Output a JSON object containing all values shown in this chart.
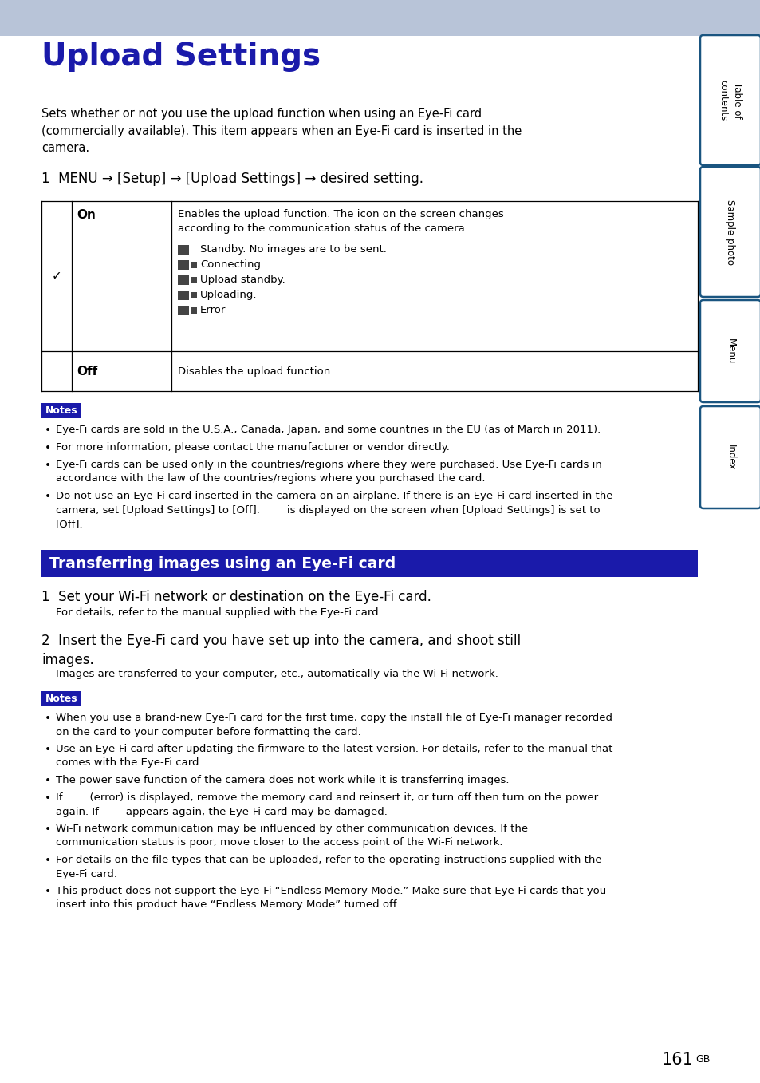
{
  "page_bg": "#ffffff",
  "header_bg": "#b8c4d8",
  "title_text": "Upload Settings",
  "title_color": "#1a1aaa",
  "title_fontsize": 26,
  "body_text_color": "#000000",
  "step1_text": "1  MENU → [Setup] → [Upload Settings] → desired setting.",
  "notes_bg": "#1a1aaa",
  "notes_text": "Notes",
  "section2_bg": "#1a1aaa",
  "section2_text": "Transferring images using an Eye-Fi card",
  "sidebar_tab_border": "#1a5580",
  "sidebar_tabs": [
    "Table of\ncontents",
    "Sample photo",
    "Menu",
    "Index"
  ],
  "page_number": "161",
  "page_number_suffix": "GB",
  "intro_text": "Sets whether or not you use the upload function when using an Eye-Fi card\n(commercially available). This item appears when an Eye-Fi card is inserted in the\ncamera.",
  "on_description_line1": "Enables the upload function. The icon on the screen changes",
  "on_description_line2": "according to the communication status of the camera.",
  "on_icon_lines": [
    "Standby. No images are to be sent.",
    "Connecting.",
    "Upload standby.",
    "Uploading.",
    "Error"
  ],
  "off_description": "Disables the upload function.",
  "notes1_bullets": [
    "Eye-Fi cards are sold in the U.S.A., Canada, Japan, and some countries in the EU (as of March in 2011).",
    "For more information, please contact the manufacturer or vendor directly.",
    "Eye-Fi cards can be used only in the countries/regions where they were purchased. Use Eye-Fi cards in\naccordance with the law of the countries/regions where you purchased the card.",
    "Do not use an Eye-Fi card inserted in the camera on an airplane. If there is an Eye-Fi card inserted in the\ncamera, set [Upload Settings] to [Off].        is displayed on the screen when [Upload Settings] is set to\n[Off]."
  ],
  "step_s1": "1  Set your Wi-Fi network or destination on the Eye-Fi card.",
  "step_s1_sub": "For details, refer to the manual supplied with the Eye-Fi card.",
  "step_s2": "2  Insert the Eye-Fi card you have set up into the camera, and shoot still\nimages.",
  "step_s2_sub": "Images are transferred to your computer, etc., automatically via the Wi-Fi network.",
  "notes2_bullets": [
    "When you use a brand-new Eye-Fi card for the first time, copy the install file of Eye-Fi manager recorded\non the card to your computer before formatting the card.",
    "Use an Eye-Fi card after updating the firmware to the latest version. For details, refer to the manual that\ncomes with the Eye-Fi card.",
    "The power save function of the camera does not work while it is transferring images.",
    "If        (error) is displayed, remove the memory card and reinsert it, or turn off then turn on the power\nagain. If        appears again, the Eye-Fi card may be damaged.",
    "Wi-Fi network communication may be influenced by other communication devices. If the\ncommunication status is poor, move closer to the access point of the Wi-Fi network.",
    "For details on the file types that can be uploaded, refer to the operating instructions supplied with the\nEye-Fi card.",
    "This product does not support the Eye-Fi “Endless Memory Mode.” Make sure that Eye-Fi cards that you\ninsert into this product have “Endless Memory Mode” turned off."
  ]
}
